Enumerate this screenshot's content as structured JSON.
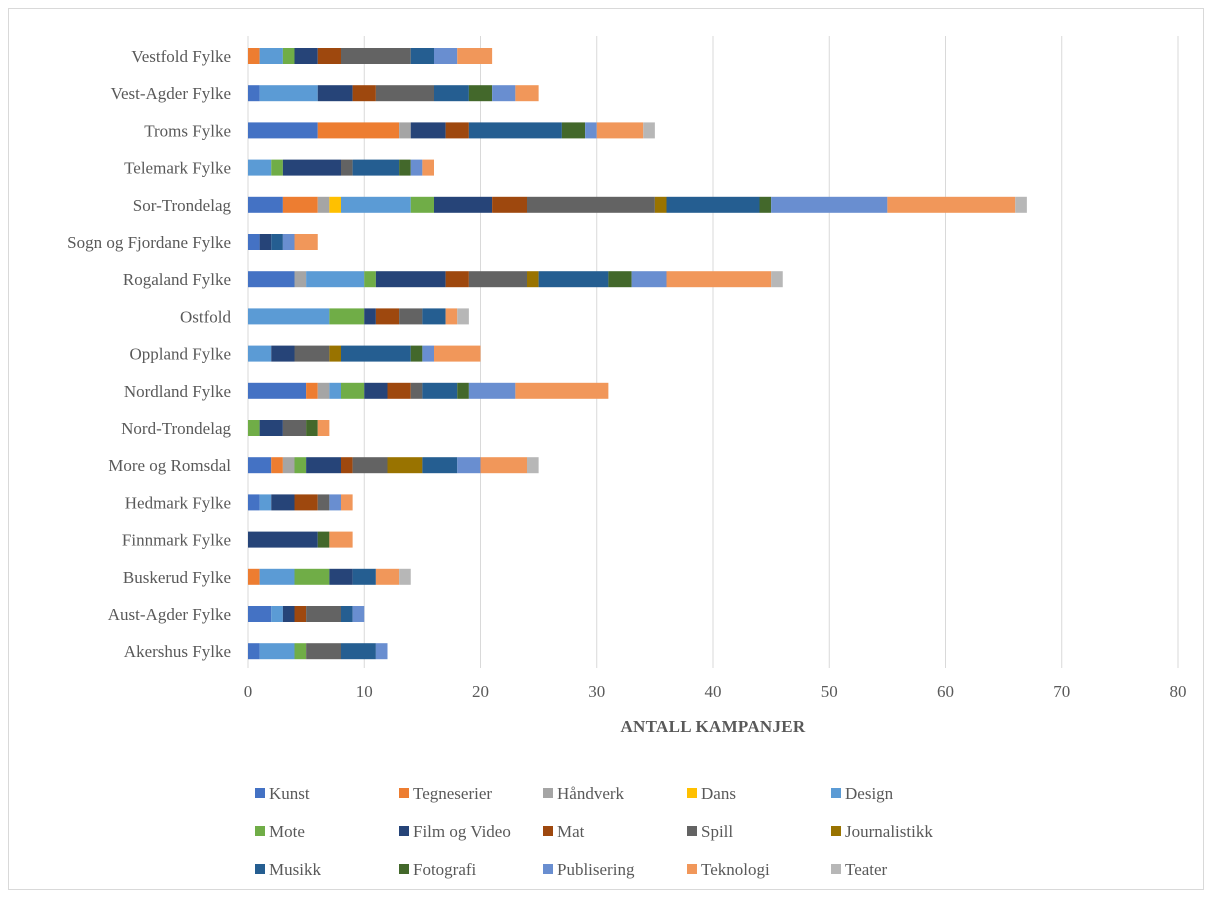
{
  "chart_data": {
    "type": "bar",
    "orientation": "horizontal",
    "stacked": true,
    "title": "",
    "xlabel": "ANTALL KAMPANJER",
    "ylabel": "",
    "xlim": [
      0,
      80
    ],
    "xticks": [
      "0",
      "10",
      "20",
      "30",
      "40",
      "50",
      "60",
      "70",
      "80"
    ],
    "grid": "vertical",
    "legend_position": "bottom",
    "categories": [
      "Vestfold Fylke",
      "Vest-Agder Fylke",
      "Troms Fylke",
      "Telemark Fylke",
      "Sor-Trondelag",
      "Sogn og Fjordane Fylke",
      "Rogaland Fylke",
      "Ostfold",
      "Oppland Fylke",
      "Nordland Fylke",
      "Nord-Trondelag",
      "More og Romsdal",
      "Hedmark Fylke",
      "Finnmark Fylke",
      "Buskerud Fylke",
      "Aust-Agder Fylke",
      "Akershus Fylke"
    ],
    "series": [
      {
        "name": "Kunst",
        "color": "#4472C4",
        "values": [
          0,
          1,
          6,
          0,
          3,
          1,
          4,
          0,
          0,
          5,
          0,
          2,
          1,
          0,
          0,
          2,
          1
        ]
      },
      {
        "name": "Tegneserier",
        "color": "#ED7D31",
        "values": [
          1,
          0,
          7,
          0,
          3,
          0,
          0,
          0,
          0,
          1,
          0,
          1,
          0,
          0,
          1,
          0,
          0
        ]
      },
      {
        "name": "Håndverk",
        "color": "#A5A5A5",
        "values": [
          0,
          0,
          1,
          0,
          1,
          0,
          1,
          0,
          0,
          1,
          0,
          1,
          0,
          0,
          0,
          0,
          0
        ]
      },
      {
        "name": "Dans",
        "color": "#FFC000",
        "values": [
          0,
          0,
          0,
          0,
          1,
          0,
          0,
          0,
          0,
          0,
          0,
          0,
          0,
          0,
          0,
          0,
          0
        ]
      },
      {
        "name": "Design",
        "color": "#5B9BD5",
        "values": [
          2,
          5,
          0,
          2,
          6,
          0,
          5,
          7,
          2,
          1,
          0,
          0,
          1,
          0,
          3,
          1,
          3
        ]
      },
      {
        "name": "Mote",
        "color": "#70AD47",
        "values": [
          1,
          0,
          0,
          1,
          2,
          0,
          1,
          3,
          0,
          2,
          1,
          1,
          0,
          0,
          3,
          0,
          1
        ]
      },
      {
        "name": "Film og Video",
        "color": "#264478",
        "values": [
          2,
          3,
          3,
          5,
          5,
          1,
          6,
          1,
          2,
          2,
          2,
          3,
          2,
          6,
          2,
          1,
          0
        ]
      },
      {
        "name": "Mat",
        "color": "#9E480E",
        "values": [
          2,
          2,
          2,
          0,
          3,
          0,
          2,
          2,
          0,
          2,
          0,
          1,
          2,
          0,
          0,
          1,
          0
        ]
      },
      {
        "name": "Spill",
        "color": "#636363",
        "values": [
          6,
          5,
          0,
          1,
          11,
          0,
          5,
          2,
          3,
          1,
          2,
          3,
          1,
          0,
          0,
          3,
          3
        ]
      },
      {
        "name": "Journalistikk",
        "color": "#997300",
        "values": [
          0,
          0,
          0,
          0,
          1,
          0,
          1,
          0,
          1,
          0,
          0,
          3,
          0,
          0,
          0,
          0,
          0
        ]
      },
      {
        "name": "Musikk",
        "color": "#255E91",
        "values": [
          2,
          3,
          8,
          4,
          8,
          1,
          6,
          2,
          6,
          3,
          0,
          3,
          0,
          0,
          2,
          1,
          3
        ]
      },
      {
        "name": "Fotografi",
        "color": "#43682B",
        "values": [
          0,
          2,
          2,
          1,
          1,
          0,
          2,
          0,
          1,
          1,
          1,
          0,
          0,
          1,
          0,
          0,
          0
        ]
      },
      {
        "name": "Publisering",
        "color": "#698ED0",
        "values": [
          2,
          2,
          1,
          1,
          10,
          1,
          3,
          0,
          1,
          4,
          0,
          2,
          1,
          0,
          0,
          1,
          1
        ]
      },
      {
        "name": "Teknologi",
        "color": "#F1975A",
        "values": [
          3,
          2,
          4,
          1,
          11,
          2,
          9,
          1,
          4,
          8,
          1,
          4,
          1,
          2,
          2,
          0,
          0
        ]
      },
      {
        "name": "Teater",
        "color": "#B7B7B7",
        "values": [
          0,
          0,
          1,
          0,
          1,
          0,
          1,
          1,
          0,
          0,
          0,
          1,
          0,
          0,
          1,
          0,
          0
        ]
      }
    ]
  }
}
